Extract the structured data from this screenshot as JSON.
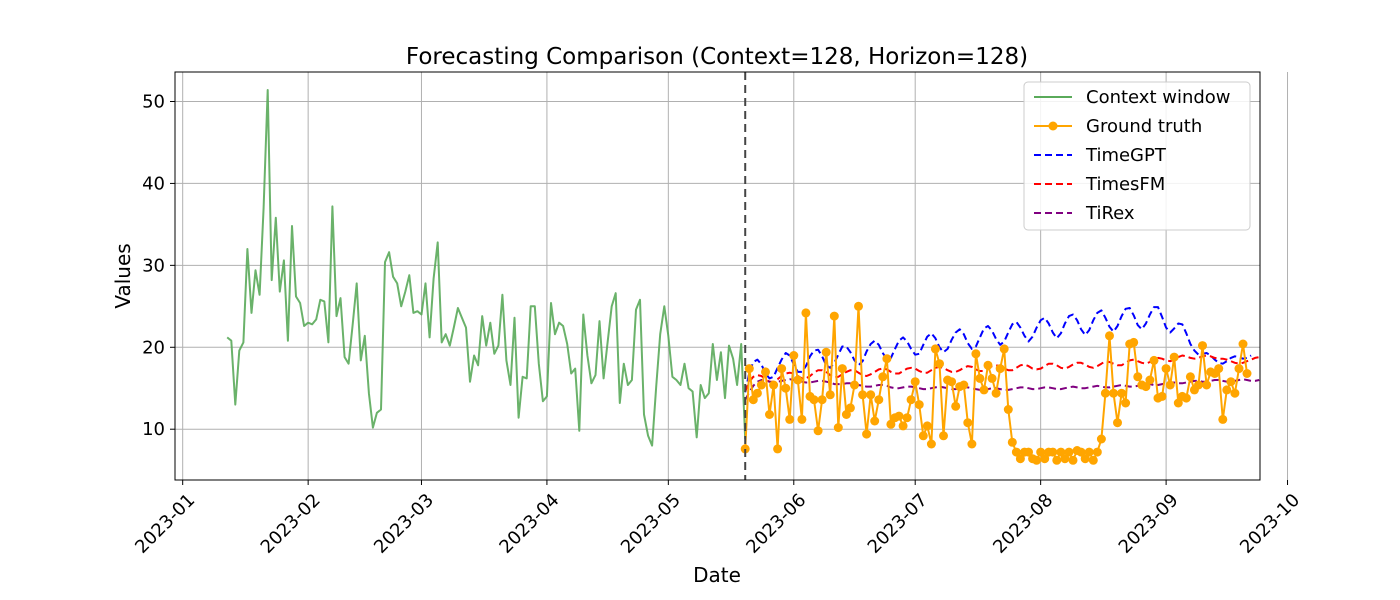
{
  "chart_data": {
    "type": "line",
    "title": "Forecasting Comparison (Context=128, Horizon=128)",
    "xlabel": "Date",
    "ylabel": "Values",
    "x_ticks": [
      "2023-01",
      "2023-02",
      "2023-03",
      "2023-04",
      "2023-05",
      "2023-06",
      "2023-07",
      "2023-08",
      "2023-09",
      "2023-10"
    ],
    "y_ticks": [
      10,
      20,
      30,
      40,
      50
    ],
    "ylim": [
      3.8,
      53.6
    ],
    "xlim_days": [
      -1.9,
      266.2
    ],
    "forecast_start_day": 139,
    "grid": true,
    "legend_position": "top-right",
    "series": [
      {
        "name": "Context window",
        "color": "#5aaa5a",
        "style": "solid",
        "start_day": 11,
        "values": [
          21.2,
          20.8,
          13.0,
          19.6,
          20.6,
          32.0,
          24.2,
          29.4,
          26.4,
          37.0,
          51.4,
          28.2,
          35.8,
          26.8,
          30.6,
          20.8,
          34.8,
          26.2,
          25.4,
          22.6,
          23.0,
          22.8,
          23.4,
          25.8,
          25.6,
          20.6,
          37.2,
          23.8,
          26.0,
          18.8,
          18.0,
          22.8,
          27.8,
          18.4,
          21.4,
          14.4,
          10.2,
          12.0,
          12.4,
          30.4,
          31.6,
          28.6,
          27.8,
          25.0,
          26.8,
          28.8,
          24.2,
          24.4,
          24.0,
          27.8,
          21.2,
          28.4,
          32.8,
          20.6,
          21.6,
          20.2,
          22.4,
          24.8,
          23.6,
          22.4,
          15.8,
          19.0,
          17.8,
          23.8,
          20.2,
          23.0,
          19.2,
          20.2,
          26.4,
          18.4,
          15.4,
          23.6,
          11.4,
          16.4,
          16.2,
          25.0,
          25.0,
          18.0,
          13.4,
          14.0,
          25.4,
          21.6,
          23.0,
          22.6,
          20.4,
          16.8,
          17.4,
          9.8,
          24.0,
          19.0,
          15.6,
          16.6,
          23.2,
          16.2,
          20.6,
          25.0,
          26.6,
          13.2,
          18.0,
          15.4,
          16.0,
          24.6,
          25.8,
          11.8,
          9.2,
          8.0,
          15.2,
          21.6,
          25.0,
          21.4,
          16.4,
          16.0,
          15.4,
          18.0,
          15.0,
          14.6,
          9.0,
          15.4,
          13.8,
          14.4,
          20.4,
          16.0,
          19.4,
          13.8,
          20.2,
          18.6,
          15.4,
          20.4,
          8.8
        ]
      },
      {
        "name": "Ground truth",
        "color": "#ffa500",
        "style": "marker",
        "start_day": 139,
        "values": [
          7.6,
          17.4,
          13.6,
          14.4,
          15.4,
          17.0,
          11.8,
          15.4,
          7.6,
          17.4,
          15.0,
          11.2,
          19.0,
          16.0,
          11.2,
          24.2,
          14.0,
          13.6,
          9.8,
          13.6,
          19.4,
          14.2,
          23.8,
          10.2,
          17.4,
          11.8,
          12.6,
          15.4,
          25.0,
          14.2,
          9.4,
          14.2,
          11.0,
          13.6,
          16.4,
          18.6,
          10.6,
          11.4,
          11.6,
          10.4,
          11.4,
          13.6,
          15.8,
          13.0,
          9.2,
          10.4,
          8.2,
          19.8,
          18.0,
          9.2,
          16.0,
          15.8,
          12.8,
          15.2,
          15.4,
          10.8,
          8.2,
          19.2,
          16.2,
          14.8,
          17.8,
          16.2,
          14.4,
          17.4,
          19.8,
          12.4,
          8.4,
          7.2,
          6.4,
          7.2,
          7.2,
          6.4,
          6.2,
          7.2,
          6.4,
          7.2,
          7.2,
          6.2,
          7.2,
          6.4,
          7.2,
          6.2,
          7.4,
          7.2,
          6.4,
          7.2,
          6.2,
          7.2,
          8.8,
          14.4,
          21.4,
          14.4,
          10.8,
          14.4,
          13.2,
          20.4,
          20.6,
          16.4,
          15.4,
          15.2,
          16.0,
          18.4,
          13.8,
          14.0,
          17.4,
          15.4,
          18.8,
          13.2,
          14.0,
          13.8,
          16.4,
          14.8,
          15.4,
          20.2,
          15.4,
          17.0,
          16.8,
          17.4,
          11.2,
          14.8,
          15.8,
          14.4,
          17.4,
          20.4,
          16.8
        ]
      },
      {
        "name": "TimeGPT",
        "color": "#0000ff",
        "style": "dashed",
        "start_day": 139,
        "values": [
          14.5,
          16.9,
          18.2,
          18.5,
          17.9,
          16.8,
          16.2,
          16.4,
          17.5,
          18.5,
          19.3,
          19.0,
          17.9,
          17.0,
          17.0,
          17.7,
          18.9,
          19.6,
          19.7,
          18.9,
          17.8,
          17.5,
          18.1,
          19.1,
          20.1,
          20.1,
          19.4,
          18.4,
          17.8,
          18.3,
          19.5,
          20.4,
          20.8,
          20.3,
          19.3,
          18.5,
          18.7,
          19.8,
          20.8,
          21.2,
          20.7,
          19.8,
          19.1,
          19.2,
          20.3,
          21.3,
          21.7,
          21.1,
          20.0,
          19.4,
          19.8,
          20.9,
          21.8,
          22.2,
          21.6,
          20.5,
          19.8,
          20.1,
          21.2,
          22.3,
          22.6,
          22.0,
          21.0,
          20.3,
          20.7,
          21.8,
          22.8,
          23.1,
          22.4,
          21.4,
          20.7,
          21.3,
          22.4,
          23.3,
          23.6,
          22.9,
          21.8,
          21.1,
          21.7,
          22.9,
          23.8,
          24.0,
          23.3,
          22.2,
          21.5,
          22.1,
          23.3,
          24.2,
          24.5,
          23.6,
          22.5,
          21.9,
          22.6,
          23.8,
          24.7,
          24.8,
          23.9,
          22.7,
          22.2,
          22.9,
          24.0,
          24.9,
          24.9,
          23.7,
          22.4,
          21.8,
          22.3,
          22.9,
          22.8,
          21.7,
          20.4,
          19.6,
          19.1,
          19.2,
          19.3,
          19.0,
          18.5,
          18.1,
          18.0,
          18.3,
          18.7,
          18.9,
          18.8,
          18.6,
          18.7,
          19.0
        ]
      },
      {
        "name": "TimesFM",
        "color": "#ff0000",
        "style": "dashed",
        "start_day": 139,
        "values": [
          14.6,
          15.8,
          16.4,
          16.6,
          16.5,
          16.1,
          15.8,
          15.8,
          16.1,
          16.5,
          16.8,
          16.9,
          16.8,
          16.5,
          16.2,
          16.2,
          16.5,
          16.9,
          17.2,
          17.2,
          17.0,
          16.6,
          16.3,
          16.4,
          16.7,
          17.0,
          17.2,
          17.2,
          16.9,
          16.6,
          16.5,
          16.7,
          17.0,
          17.3,
          17.4,
          17.3,
          17.0,
          16.8,
          16.8,
          17.1,
          17.4,
          17.5,
          17.4,
          17.1,
          16.9,
          16.9,
          17.2,
          17.5,
          17.6,
          17.5,
          17.2,
          17.0,
          17.0,
          17.2,
          17.5,
          17.7,
          17.6,
          17.3,
          17.1,
          17.1,
          17.4,
          17.7,
          17.8,
          17.7,
          17.4,
          17.2,
          17.2,
          17.5,
          17.8,
          17.9,
          17.7,
          17.4,
          17.3,
          17.4,
          17.7,
          18.0,
          18.0,
          17.8,
          17.5,
          17.4,
          17.6,
          17.9,
          18.1,
          18.1,
          17.9,
          17.6,
          17.5,
          17.7,
          18.0,
          18.3,
          18.2,
          18.0,
          17.8,
          17.8,
          18.1,
          18.4,
          18.5,
          18.3,
          18.1,
          18.0,
          18.2,
          18.5,
          18.7,
          18.6,
          18.4,
          18.3,
          18.5,
          18.8,
          19.0,
          18.9,
          18.7,
          18.6,
          18.7,
          18.9,
          19.0,
          18.9,
          18.7,
          18.6,
          18.6,
          18.5,
          18.3,
          18.1,
          18.0,
          18.1,
          18.3,
          18.5,
          18.7,
          18.8
        ]
      },
      {
        "name": "TiRex",
        "color": "#800080",
        "style": "dashed",
        "start_day": 139,
        "values": [
          13.6,
          14.5,
          15.3,
          15.8,
          16.0,
          15.9,
          15.8,
          15.7,
          15.8,
          15.9,
          16.0,
          16.1,
          16.0,
          15.9,
          15.8,
          15.7,
          15.7,
          15.8,
          15.9,
          15.9,
          15.8,
          15.7,
          15.5,
          15.5,
          15.5,
          15.6,
          15.6,
          15.6,
          15.4,
          15.3,
          15.2,
          15.2,
          15.3,
          15.4,
          15.4,
          15.3,
          15.1,
          15.0,
          15.0,
          15.1,
          15.2,
          15.2,
          15.1,
          15.0,
          14.9,
          14.9,
          15.0,
          15.1,
          15.2,
          15.1,
          15.0,
          14.9,
          14.9,
          15.0,
          15.1,
          15.1,
          15.0,
          14.9,
          14.8,
          14.8,
          14.9,
          15.0,
          15.0,
          14.9,
          14.8,
          14.8,
          14.9,
          15.0,
          15.1,
          15.1,
          15.0,
          14.9,
          14.9,
          15.0,
          15.1,
          15.1,
          15.0,
          14.9,
          14.9,
          15.0,
          15.1,
          15.2,
          15.1,
          15.0,
          15.0,
          15.1,
          15.2,
          15.3,
          15.2,
          15.1,
          15.1,
          15.2,
          15.3,
          15.4,
          15.3,
          15.2,
          15.2,
          15.3,
          15.4,
          15.5,
          15.5,
          15.4,
          15.4,
          15.5,
          15.6,
          15.7,
          15.7,
          15.6,
          15.6,
          15.7,
          15.8,
          15.9,
          15.9,
          15.8,
          15.8,
          15.9,
          16.0,
          16.0,
          15.9,
          15.8,
          15.8,
          15.9,
          16.0,
          16.1,
          16.0,
          15.9,
          15.9,
          16.0
        ]
      }
    ]
  }
}
